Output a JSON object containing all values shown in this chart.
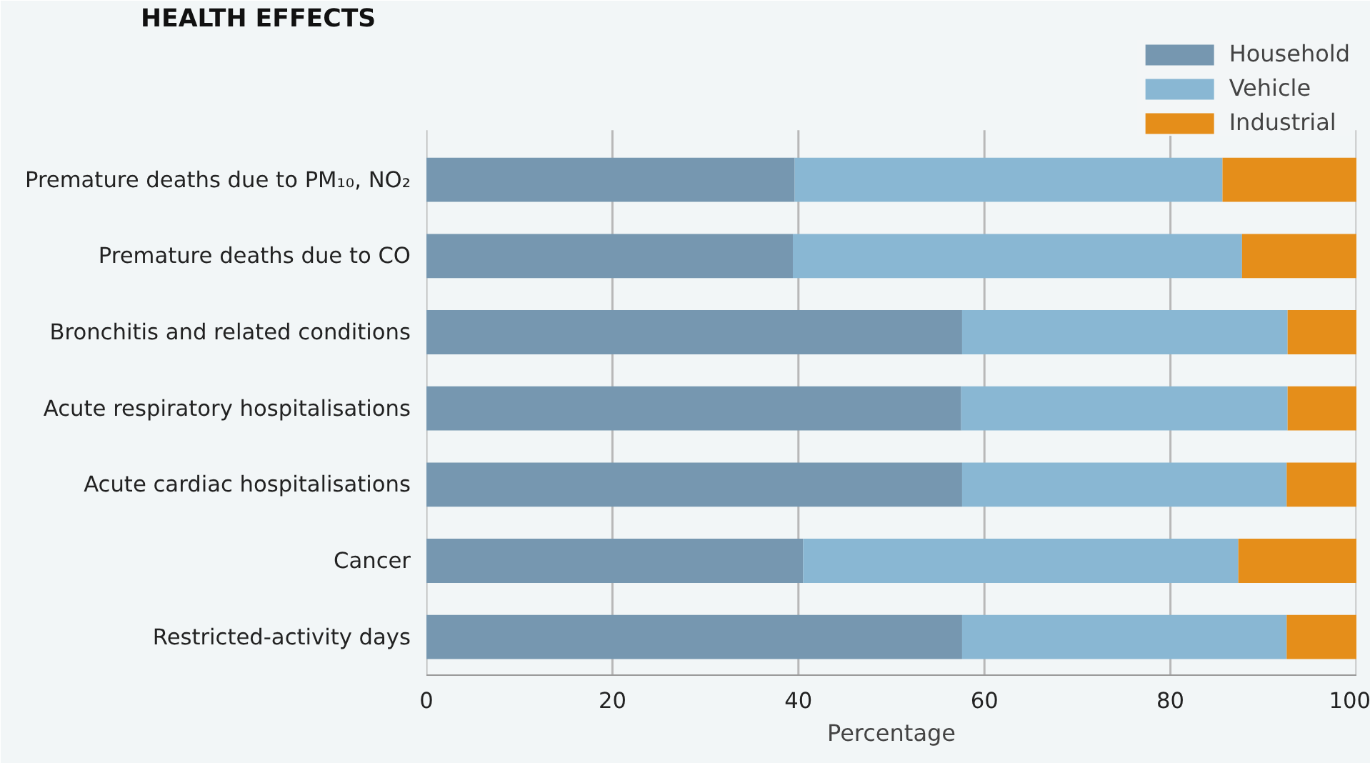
{
  "chart_data": {
    "type": "bar",
    "orientation": "horizontal",
    "stacked": true,
    "title": "HEALTH EFFECTS",
    "xlabel": "Percentage",
    "categories": [
      "Premature deaths due to PM₁₀, NO₂",
      "Premature deaths due to CO",
      "Bronchitis and related conditions",
      "Acute respiratory hospitalisations",
      "Acute cardiac hospitalisations",
      "Cancer",
      "Restricted-activity days"
    ],
    "series": [
      {
        "name": "Household",
        "color": "#7697b0",
        "values": [
          39.6,
          39.4,
          57.6,
          57.5,
          57.6,
          40.5,
          57.6
        ]
      },
      {
        "name": "Vehicle",
        "color": "#89b7d3",
        "values": [
          46.0,
          48.3,
          35.0,
          35.1,
          34.9,
          46.8,
          34.9
        ]
      },
      {
        "name": "Industrial",
        "color": "#e58e1a",
        "values": [
          14.4,
          12.3,
          7.4,
          7.4,
          7.5,
          12.7,
          7.5
        ]
      }
    ],
    "xlim": [
      0,
      100
    ],
    "xticks": [
      0,
      20,
      40,
      60,
      80,
      100
    ],
    "grid": "x",
    "legend": "top right"
  }
}
